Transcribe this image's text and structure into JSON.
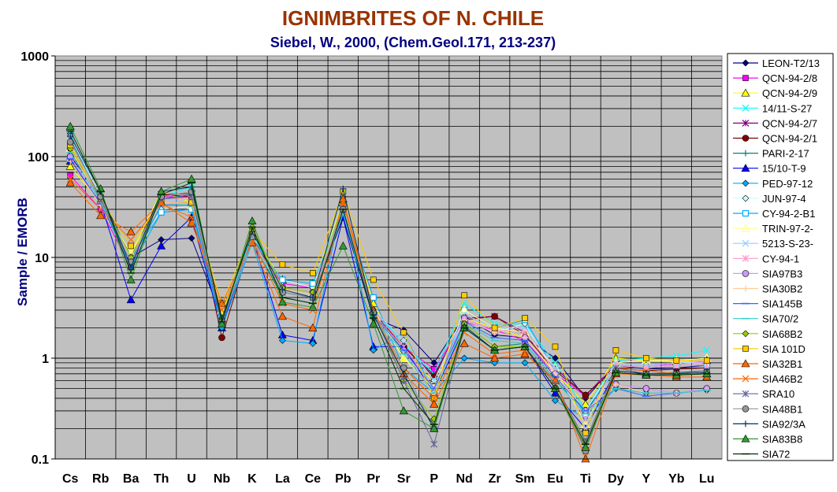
{
  "chart_data": {
    "type": "line",
    "title": "IGNIMBRITES OF N. CHILE",
    "subtitle": "Siebel, W., 2000, (Chem.Geol.171, 213-237)",
    "ylabel": "Sample / EMORB",
    "xlabel": "",
    "yscale": "log",
    "ylim": [
      0.1,
      1000
    ],
    "y_ticks": [
      "0.1",
      "1",
      "10",
      "100",
      "1000"
    ],
    "grid": true,
    "legend_position": "right",
    "plot_background": "#c0c0c0",
    "categories": [
      "Cs",
      "Rb",
      "Ba",
      "Th",
      "U",
      "Nb",
      "K",
      "La",
      "Ce",
      "Pb",
      "Pr",
      "Sr",
      "P",
      "Nd",
      "Zr",
      "Sm",
      "Eu",
      "Ti",
      "Dy",
      "Y",
      "Yb",
      "Lu"
    ],
    "series": [
      {
        "name": "LEON-T2/13",
        "color": "#000080",
        "marker": "diamond",
        "values": [
          100,
          42,
          10,
          15,
          15.5,
          2.5,
          17,
          4.5,
          4,
          25,
          2.5,
          1.9,
          0.9,
          2.6,
          1.7,
          1.6,
          1,
          0.4,
          0.85,
          0.78,
          0.8,
          0.85
        ]
      },
      {
        "name": "QCN-94-2/8",
        "color": "#ff00ff",
        "marker": "square",
        "values": [
          65,
          30,
          8,
          40,
          40,
          2.3,
          15,
          5.5,
          5,
          30,
          3,
          1.3,
          0.78,
          2.3,
          1.9,
          1.5,
          0.7,
          0.42,
          0.9,
          0.85,
          0.88,
          0.92
        ]
      },
      {
        "name": "QCN-94-2/9",
        "color": "#ffff00",
        "marker": "triangle",
        "values": [
          80,
          35,
          11,
          45,
          35,
          2.8,
          16,
          6,
          5.5,
          35,
          3.5,
          1,
          0.6,
          2.5,
          2,
          1.6,
          0.72,
          0.35,
          1,
          0.95,
          0.92,
          0.95
        ]
      },
      {
        "name": "14/11-S-27",
        "color": "#00ffff",
        "marker": "x",
        "values": [
          150,
          40,
          9,
          40,
          50,
          2.4,
          17,
          5,
          4.5,
          30,
          3,
          1.4,
          0.7,
          3.5,
          2.2,
          2.2,
          0.9,
          0.3,
          0.95,
          1,
          1.05,
          1.2
        ]
      },
      {
        "name": "QCN-94-2/7",
        "color": "#800080",
        "marker": "star",
        "values": [
          110,
          38,
          10,
          42,
          43,
          2.3,
          16,
          5,
          4.5,
          28,
          3,
          1.3,
          0.68,
          2.5,
          2.6,
          1.8,
          0.8,
          0.43,
          0.85,
          0.8,
          0.85,
          0.85
        ]
      },
      {
        "name": "QCN-94-2/1",
        "color": "#800000",
        "marker": "circle",
        "values": [
          120,
          38,
          9,
          42,
          40,
          1.6,
          16,
          5,
          4.5,
          30,
          2.8,
          1.3,
          0.65,
          2.4,
          2.6,
          1.7,
          0.75,
          0.43,
          0.8,
          0.75,
          0.78,
          0.8
        ]
      },
      {
        "name": "PARI-2-17",
        "color": "#008080",
        "marker": "plus",
        "values": [
          140,
          40,
          10,
          38,
          42,
          2.5,
          15,
          4,
          3.5,
          30,
          2.5,
          1.2,
          0.5,
          2.2,
          1.3,
          1.4,
          0.6,
          0.3,
          0.75,
          0.7,
          0.72,
          0.75
        ]
      },
      {
        "name": "15/10-T-9",
        "color": "#0000ff",
        "marker": "triangle",
        "values": [
          90,
          35,
          3.8,
          13,
          25,
          2,
          16,
          1.7,
          1.5,
          25,
          1.3,
          1.3,
          0.45,
          2,
          1.2,
          1.3,
          0.45,
          0.2,
          0.75,
          0.7,
          0.7,
          0.7
        ]
      },
      {
        "name": "PED-97-12",
        "color": "#00aaff",
        "marker": "diamond",
        "values": [
          170,
          35,
          8,
          28,
          30,
          2,
          14,
          1.5,
          1.4,
          40,
          1.2,
          1.8,
          0.45,
          1,
          0.9,
          0.9,
          0.38,
          0.25,
          0.5,
          0.45,
          0.45,
          0.48
        ]
      },
      {
        "name": "JUN-97-4",
        "color": "#ccffff",
        "marker": "diamond",
        "values": [
          160,
          40,
          9,
          30,
          32,
          2.5,
          15,
          6,
          5,
          35,
          3,
          1.5,
          0.6,
          2.5,
          1.8,
          2.2,
          0.7,
          0.3,
          0.9,
          0.85,
          0.9,
          0.9
        ]
      },
      {
        "name": "CY-94-2-B1",
        "color": "#00aaff",
        "marker": "open-square",
        "values": [
          130,
          36,
          10,
          28,
          30,
          2.5,
          15,
          6,
          5.5,
          30,
          4,
          0.8,
          0.45,
          3,
          2,
          2.4,
          0.75,
          0.28,
          0.85,
          0.8,
          0.85,
          0.85
        ]
      },
      {
        "name": "TRIN-97-2-",
        "color": "#ffff99",
        "marker": "open-triangle",
        "values": [
          120,
          35,
          11,
          35,
          33,
          3,
          15,
          5,
          4.5,
          30,
          3,
          1,
          0.5,
          3,
          2,
          1.8,
          0.8,
          0.22,
          0.9,
          0.95,
          0.95,
          1
        ]
      },
      {
        "name": "5213-S-23-",
        "color": "#99ccff",
        "marker": "x",
        "values": [
          140,
          38,
          10,
          36,
          38,
          2.5,
          15,
          5,
          4.5,
          32,
          3,
          1.5,
          0.6,
          2.7,
          2,
          2,
          0.8,
          0.2,
          0.9,
          0.85,
          0.9,
          0.95
        ]
      },
      {
        "name": "CY-94-1",
        "color": "#ff99cc",
        "marker": "star",
        "values": [
          130,
          35,
          9,
          38,
          38,
          2.4,
          15,
          5,
          4.5,
          30,
          3,
          1.3,
          0.5,
          2.5,
          1.9,
          1.8,
          0.75,
          0.25,
          0.85,
          0.8,
          0.85,
          0.85
        ]
      },
      {
        "name": "SIA97B3",
        "color": "#cc99ff",
        "marker": "circle",
        "values": [
          100,
          34,
          10,
          35,
          35,
          2.3,
          14,
          5,
          4.5,
          28,
          2.8,
          1.2,
          0.45,
          2.5,
          1.8,
          1.6,
          0.7,
          0.3,
          0.55,
          0.5,
          0.45,
          0.5
        ]
      },
      {
        "name": "SIA30B2",
        "color": "#ffcc99",
        "marker": "plus",
        "values": [
          90,
          33,
          10,
          35,
          34,
          2.3,
          14,
          4.8,
          4.3,
          28,
          2.8,
          1.1,
          0.45,
          2.4,
          1.8,
          1.6,
          0.7,
          0.3,
          0.55,
          0.45,
          0.45,
          0.48
        ]
      },
      {
        "name": "SIA145B",
        "color": "#3366ff",
        "marker": "dash",
        "values": [
          95,
          34,
          9,
          33,
          33,
          2.2,
          14,
          4.5,
          4,
          28,
          2.7,
          1.2,
          0.5,
          2.3,
          1.6,
          1.5,
          0.65,
          0.3,
          0.5,
          0.42,
          0.45,
          0.48
        ]
      },
      {
        "name": "SIA70/2",
        "color": "#33cccc",
        "marker": "dash",
        "values": [
          110,
          36,
          9,
          34,
          34,
          2.3,
          14,
          4.5,
          4,
          27,
          2.6,
          1.1,
          0.45,
          2.2,
          1.5,
          1.4,
          0.6,
          0.28,
          0.5,
          0.45,
          0.45,
          0.48
        ]
      },
      {
        "name": "SIA68B2",
        "color": "#99cc00",
        "marker": "diamond",
        "values": [
          120,
          40,
          10,
          40,
          45,
          2.5,
          20,
          5,
          4.5,
          35,
          3,
          0.6,
          0.25,
          2.2,
          1.3,
          1.3,
          0.5,
          0.15,
          0.75,
          0.7,
          0.7,
          0.7
        ]
      },
      {
        "name": "SIA 101D",
        "color": "#ffcc00",
        "marker": "square",
        "values": [
          130,
          38,
          13,
          36,
          35,
          3.5,
          18,
          8.5,
          7,
          45,
          6,
          1.8,
          0.4,
          4.2,
          2,
          2.5,
          1.3,
          0.18,
          1.2,
          1,
          0.95,
          0.95
        ]
      },
      {
        "name": "SIA32B1",
        "color": "#ff6600",
        "marker": "triangle",
        "values": [
          55,
          26,
          18,
          35,
          22,
          3.5,
          14,
          2.6,
          2,
          38,
          3,
          0.7,
          0.35,
          1.4,
          1,
          1.1,
          0.6,
          0.1,
          0.7,
          0.68,
          0.65,
          0.65
        ]
      },
      {
        "name": "SIA46B2",
        "color": "#ff6600",
        "marker": "x",
        "values": [
          60,
          30,
          15,
          34,
          25,
          3,
          15,
          3.5,
          3,
          35,
          2.8,
          0.8,
          0.4,
          1.8,
          1.1,
          1.2,
          0.6,
          0.12,
          0.8,
          0.75,
          0.7,
          0.75
        ]
      },
      {
        "name": "SRA10",
        "color": "#666699",
        "marker": "star",
        "values": [
          150,
          38,
          9,
          38,
          40,
          2.2,
          16,
          4.5,
          4,
          30,
          2.8,
          0.6,
          0.14,
          2,
          1.2,
          1.3,
          0.55,
          0.15,
          0.8,
          0.7,
          0.7,
          0.75
        ]
      },
      {
        "name": "SIA48B1",
        "color": "#969696",
        "marker": "circle",
        "values": [
          140,
          40,
          9,
          40,
          45,
          2.3,
          16,
          4.5,
          4,
          30,
          2.8,
          0.8,
          0.2,
          2,
          1.2,
          1.3,
          0.5,
          0.12,
          0.75,
          0.7,
          0.7,
          0.72
        ]
      },
      {
        "name": "SIA92/3A",
        "color": "#003366",
        "marker": "plus",
        "values": [
          160,
          45,
          8,
          45,
          50,
          2.5,
          18,
          4.8,
          4,
          48,
          2.7,
          0.7,
          0.2,
          2.1,
          1.2,
          1.3,
          0.5,
          0.13,
          0.75,
          0.7,
          0.7,
          0.72
        ]
      },
      {
        "name": "SIA83B8",
        "color": "#339933",
        "marker": "triangle",
        "values": [
          200,
          48,
          6,
          45,
          60,
          2.2,
          23,
          3.6,
          3.2,
          13,
          2.2,
          0.3,
          0.2,
          2,
          1.2,
          1.3,
          0.5,
          0.13,
          0.72,
          0.68,
          0.68,
          0.7
        ]
      },
      {
        "name": "SIA72",
        "color": "#003300",
        "marker": "dash",
        "values": [
          180,
          45,
          7,
          42,
          55,
          2.3,
          20,
          4,
          3.5,
          30,
          2.5,
          0.5,
          0.22,
          2,
          1.2,
          1.3,
          0.5,
          0.14,
          0.72,
          0.68,
          0.68,
          0.7
        ]
      }
    ]
  }
}
